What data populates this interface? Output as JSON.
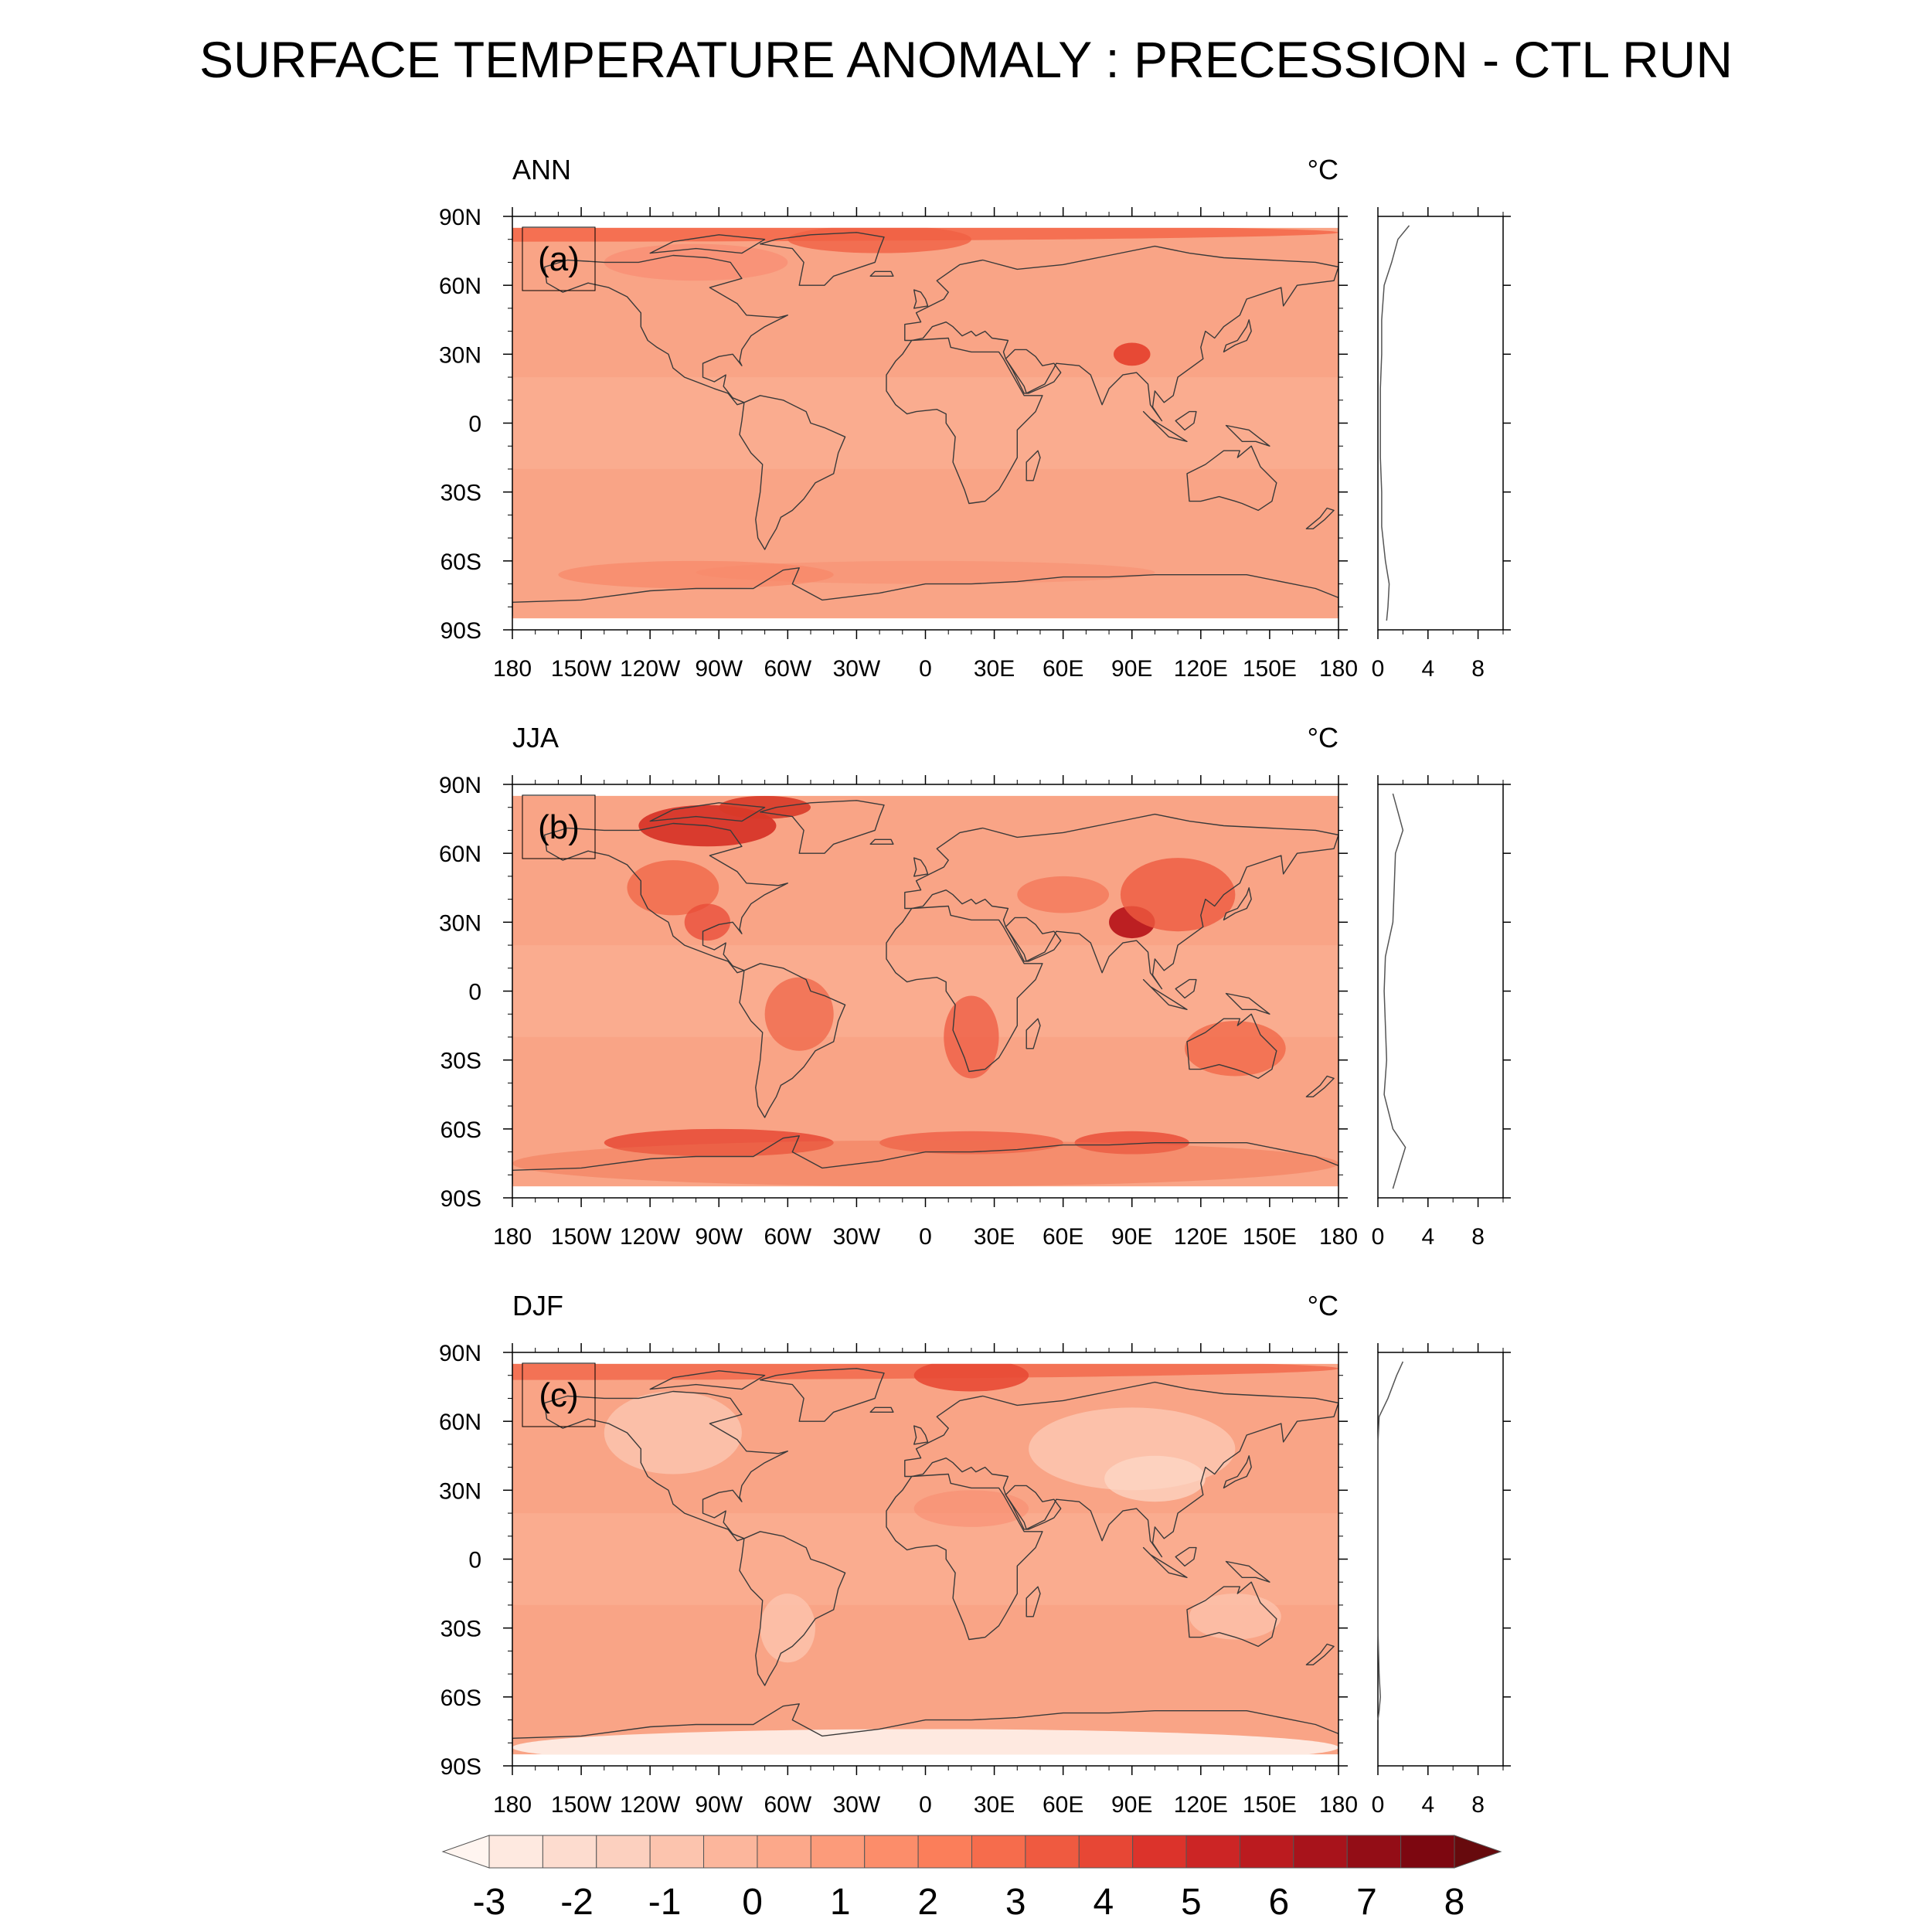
{
  "title": "SURFACE TEMPERATURE ANOMALY : PRECESSION - CTL RUN",
  "units_html": "°C",
  "lat_ticks": [
    "90N",
    "60N",
    "30N",
    "0",
    "30S",
    "60S",
    "90S"
  ],
  "lon_ticks": [
    "180",
    "150W",
    "120W",
    "90W",
    "60W",
    "30W",
    "0",
    "30E",
    "60E",
    "90E",
    "120E",
    "150E",
    "180"
  ],
  "profile_ticks": [
    "0",
    "4",
    "8"
  ],
  "colorbar": {
    "labels": [
      "-3",
      "-2",
      "-1",
      "0",
      "1",
      "2",
      "3",
      "4",
      "5",
      "6",
      "7",
      "8"
    ],
    "colors": [
      "#fee9e0",
      "#fddccf",
      "#fcd0bf",
      "#fcc4ae",
      "#fcb69c",
      "#fca88a",
      "#fc9b7a",
      "#fc8d6a",
      "#fb7e5a",
      "#f66c4c",
      "#ef5a40",
      "#e74735",
      "#dc332b",
      "#cc2525",
      "#bb1b1f",
      "#a8131b",
      "#930d16",
      "#7d0710"
    ],
    "extend_low": "#fff5f0",
    "extend_high": "#670a0d"
  },
  "panels": [
    {
      "id": "a",
      "season": "ANN",
      "label": "(a)",
      "units": "°C"
    },
    {
      "id": "b",
      "season": "JJA",
      "label": "(b)",
      "units": "°C"
    },
    {
      "id": "c",
      "season": "DJF",
      "label": "(c)",
      "units": "°C"
    }
  ],
  "chart_data": [
    {
      "type": "heatmap",
      "title": "ANN",
      "label": "(a)",
      "xlim": [
        -180,
        180
      ],
      "ylim": [
        -90,
        90
      ],
      "zonal_mean_profile": {
        "xlim": [
          0,
          10
        ],
        "lat": [
          86,
          80,
          70,
          60,
          45,
          30,
          15,
          0,
          -15,
          -30,
          -45,
          -60,
          -70,
          -80,
          -86
        ],
        "value": [
          2.5,
          1.6,
          1.1,
          0.5,
          0.3,
          0.3,
          0.2,
          0.2,
          0.2,
          0.3,
          0.3,
          0.6,
          0.9,
          0.8,
          0.7
        ]
      }
    },
    {
      "type": "heatmap",
      "title": "JJA",
      "label": "(b)",
      "xlim": [
        -180,
        180
      ],
      "ylim": [
        -90,
        90
      ],
      "zonal_mean_profile": {
        "xlim": [
          0,
          10
        ],
        "lat": [
          86,
          80,
          70,
          60,
          45,
          30,
          15,
          0,
          -15,
          -30,
          -45,
          -60,
          -68,
          -75,
          -86
        ],
        "value": [
          1.2,
          1.5,
          2.0,
          1.4,
          1.3,
          1.2,
          0.6,
          0.5,
          0.6,
          0.7,
          0.5,
          1.2,
          2.2,
          1.8,
          1.2
        ]
      }
    },
    {
      "type": "heatmap",
      "title": "DJF",
      "label": "(c)",
      "xlim": [
        -180,
        180
      ],
      "ylim": [
        -90,
        90
      ],
      "zonal_mean_profile": {
        "xlim": [
          0,
          10
        ],
        "lat": [
          86,
          80,
          70,
          62,
          50,
          30,
          0,
          -30,
          -50,
          -60,
          -66,
          -70
        ],
        "value": [
          2.0,
          1.5,
          0.8,
          0.1,
          0.0,
          0.0,
          0.0,
          0.0,
          0.1,
          0.2,
          0.1,
          0.0
        ]
      }
    }
  ]
}
